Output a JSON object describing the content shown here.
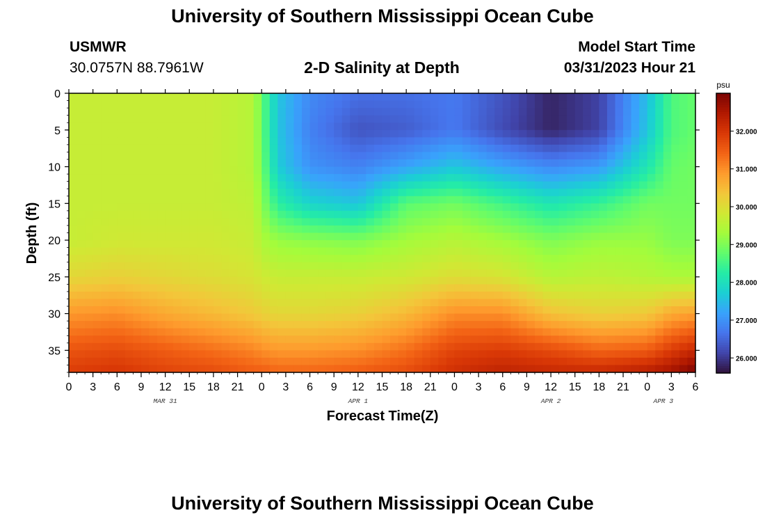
{
  "page": {
    "title_top": "University of Southern Mississippi Ocean Cube",
    "title_bottom": "University of Southern Mississippi Ocean Cube",
    "station_name": "USMWR",
    "station_coords": "30.0757N  88.7961W",
    "plot_title": "2-D Salinity at Depth",
    "model_start_label": "Model Start Time",
    "model_start_value": "03/31/2023 Hour 21"
  },
  "chart_data": {
    "type": "heatmap",
    "title": "2-D Salinity at Depth",
    "xlabel": "Forecast Time(Z)",
    "ylabel": "Depth (ft)",
    "ylim": [
      0,
      38
    ],
    "y_inverted": true,
    "y_ticks": [
      0,
      5,
      10,
      15,
      20,
      25,
      30,
      35
    ],
    "x_range_hours": [
      0,
      78
    ],
    "x_tick_hours": [
      0,
      3,
      6,
      9,
      12,
      15,
      18,
      21,
      24,
      27,
      30,
      33,
      36,
      39,
      42,
      45,
      48,
      51,
      54,
      57,
      60,
      63,
      66,
      69,
      72,
      75,
      78
    ],
    "x_tick_labels": [
      "0",
      "3",
      "6",
      "9",
      "12",
      "15",
      "18",
      "21",
      "0",
      "3",
      "6",
      "9",
      "12",
      "15",
      "18",
      "21",
      "0",
      "3",
      "6",
      "9",
      "12",
      "15",
      "18",
      "21",
      "0",
      "3",
      "6"
    ],
    "day_labels": [
      {
        "hour": 12,
        "label": "MAR 31"
      },
      {
        "hour": 36,
        "label": "APR 1"
      },
      {
        "hour": 60,
        "label": "APR 2"
      },
      {
        "hour": 74,
        "label": "APR 3"
      }
    ],
    "colorbar": {
      "unit": "psu",
      "min": 25.6,
      "max": 33.0,
      "tick_values": [
        26,
        27,
        28,
        29,
        30,
        31,
        32
      ],
      "tick_labels": [
        "26.000",
        "27.000",
        "28.000",
        "29.000",
        "30.000",
        "31.000",
        "32.000"
      ],
      "colorscale": [
        "#30123b",
        "#4145ab",
        "#4675ed",
        "#39a2fc",
        "#1bcfd4",
        "#24eca6",
        "#61fc6c",
        "#a4fc3b",
        "#d1e834",
        "#f3c63a",
        "#fe9b2d",
        "#f36315",
        "#d93806",
        "#b11901",
        "#7a0403"
      ]
    },
    "salinity_field": {
      "description": "approximate salinity (psu) by forecast hour (rows) and depth (ft, columns)",
      "depths_ft": [
        0,
        5,
        10,
        15,
        20,
        25,
        30,
        35,
        38
      ],
      "hours": [
        0,
        6,
        12,
        18,
        23,
        24,
        26,
        30,
        36,
        42,
        48,
        54,
        60,
        66,
        72,
        75,
        78
      ],
      "values": [
        [
          29.7,
          29.7,
          29.7,
          29.7,
          29.7,
          30.1,
          30.9,
          31.6,
          31.9
        ],
        [
          29.7,
          29.7,
          29.7,
          29.7,
          29.8,
          30.2,
          31.0,
          31.7,
          32.0
        ],
        [
          29.7,
          29.7,
          29.7,
          29.7,
          29.8,
          30.1,
          30.7,
          31.5,
          31.8
        ],
        [
          29.7,
          29.7,
          29.7,
          29.7,
          29.8,
          30.0,
          30.5,
          31.3,
          31.7
        ],
        [
          29.5,
          29.5,
          29.5,
          29.6,
          29.7,
          29.9,
          30.3,
          31.1,
          31.5
        ],
        [
          28.8,
          28.8,
          28.9,
          29.1,
          29.4,
          29.8,
          30.2,
          31.0,
          31.5
        ],
        [
          27.6,
          27.6,
          27.7,
          28.3,
          29.2,
          29.7,
          30.1,
          30.9,
          31.4
        ],
        [
          26.9,
          26.8,
          27.0,
          27.8,
          29.1,
          29.7,
          30.1,
          30.9,
          31.4
        ],
        [
          26.6,
          26.3,
          26.8,
          27.6,
          29.0,
          29.7,
          30.2,
          31.0,
          31.5
        ],
        [
          26.6,
          26.4,
          27.2,
          28.7,
          29.3,
          29.8,
          30.5,
          31.3,
          31.7
        ],
        [
          26.7,
          26.7,
          27.6,
          28.9,
          29.5,
          30.0,
          31.0,
          31.8,
          32.1
        ],
        [
          26.3,
          26.2,
          27.2,
          28.5,
          29.3,
          29.9,
          31.0,
          31.9,
          32.3
        ],
        [
          25.8,
          25.8,
          26.9,
          28.1,
          29.0,
          29.5,
          30.4,
          31.7,
          32.2
        ],
        [
          26.1,
          26.1,
          27.1,
          28.4,
          29.2,
          29.6,
          30.2,
          31.4,
          32.2
        ],
        [
          27.5,
          27.6,
          28.1,
          28.9,
          29.2,
          29.5,
          30.3,
          31.5,
          32.4
        ],
        [
          28.6,
          28.6,
          28.8,
          28.9,
          29.0,
          29.4,
          30.7,
          31.9,
          32.6
        ],
        [
          28.8,
          28.8,
          28.9,
          28.9,
          29.0,
          29.4,
          30.8,
          32.2,
          33.0
        ]
      ]
    }
  }
}
